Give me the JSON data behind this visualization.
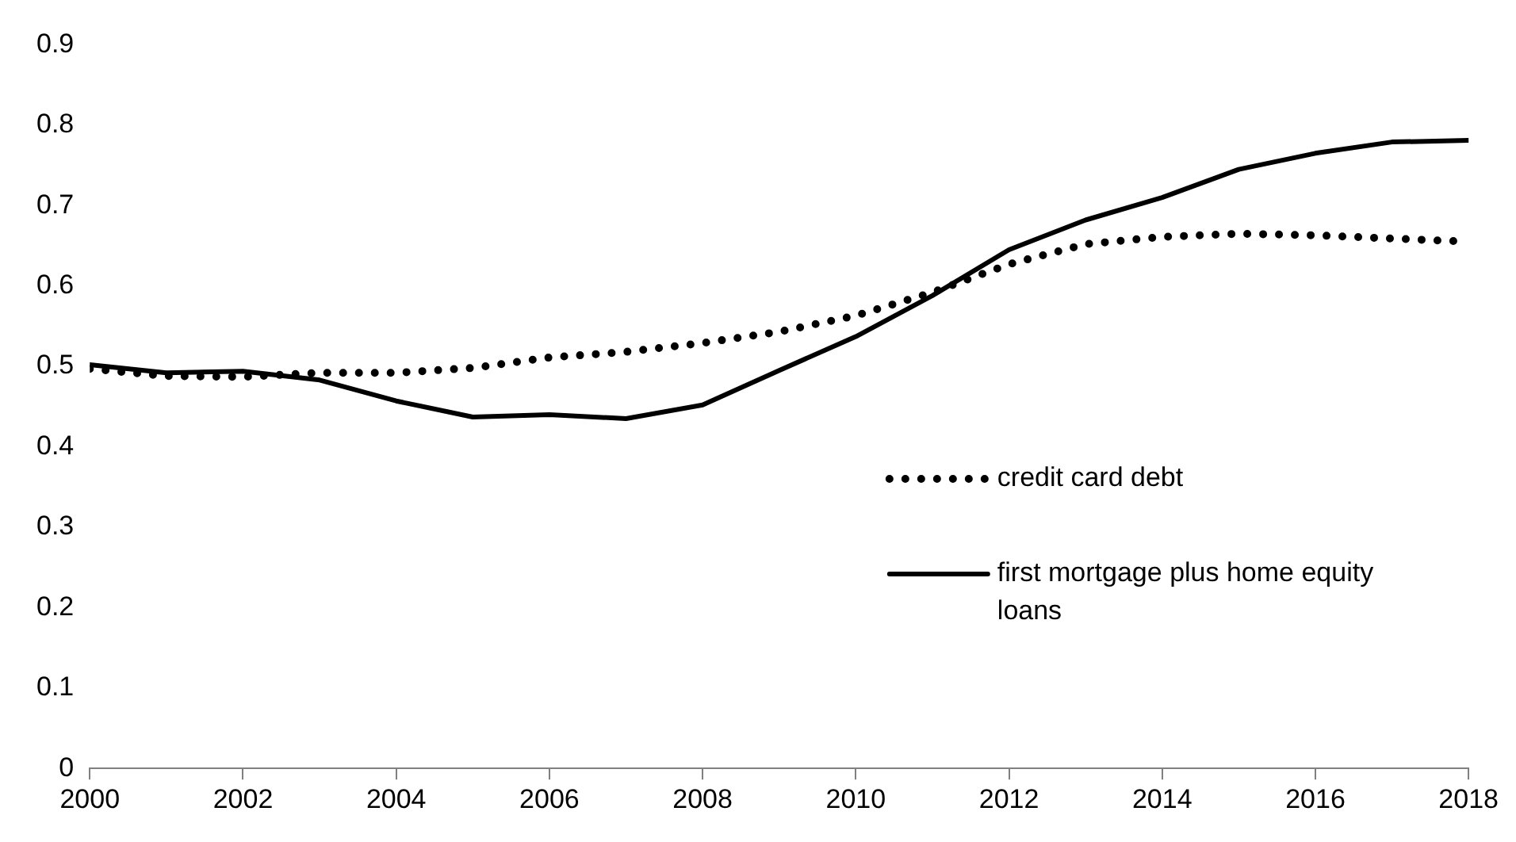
{
  "chart_data": {
    "type": "line",
    "x": [
      2000,
      2001,
      2002,
      2003,
      2004,
      2005,
      2006,
      2007,
      2008,
      2009,
      2010,
      2011,
      2012,
      2013,
      2014,
      2015,
      2016,
      2017,
      2018
    ],
    "xlim": [
      2000,
      2018
    ],
    "xticks": [
      2000,
      2002,
      2004,
      2006,
      2008,
      2010,
      2012,
      2014,
      2016,
      2018
    ],
    "ylim": [
      0,
      0.9
    ],
    "yticks": [
      0,
      0.1,
      0.2,
      0.3,
      0.4,
      0.5,
      0.6,
      0.7,
      0.8,
      0.9
    ],
    "grid": false,
    "legend": "right",
    "marker": "none",
    "series": [
      {
        "name": "credit card debt",
        "color": "#000000",
        "line_style": "dotted",
        "values": [
          0.497,
          0.488,
          0.487,
          0.492,
          0.492,
          0.498,
          0.511,
          0.518,
          0.529,
          0.543,
          0.563,
          0.592,
          0.627,
          0.652,
          0.661,
          0.665,
          0.663,
          0.659,
          0.655
        ]
      },
      {
        "name": "first mortgage plus home equity loans",
        "color": "#000000",
        "line_style": "solid",
        "values": [
          0.502,
          0.492,
          0.494,
          0.483,
          0.457,
          0.437,
          0.44,
          0.435,
          0.452,
          0.495,
          0.537,
          0.588,
          0.645,
          0.682,
          0.71,
          0.745,
          0.765,
          0.779,
          0.781
        ]
      }
    ]
  }
}
